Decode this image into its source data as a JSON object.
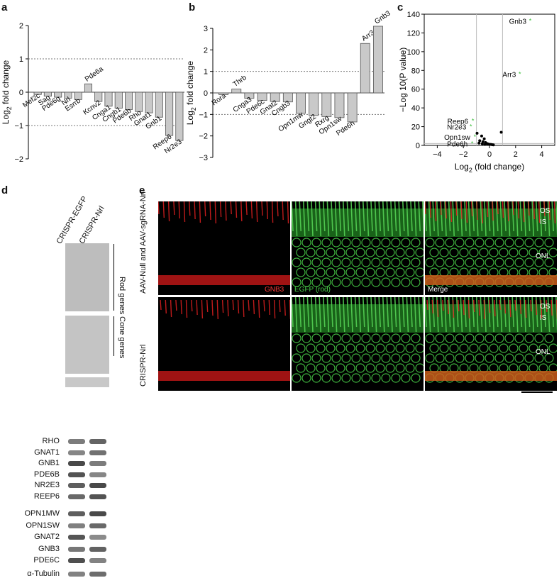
{
  "panels": {
    "a": "a",
    "b": "b",
    "c": "c",
    "d": "d",
    "e": "e"
  },
  "chart_data": [
    {
      "type": "bar",
      "ylabel": "Log2 fold change",
      "ylim": [
        -2,
        2
      ],
      "yticks": [
        "−2",
        "−1",
        "0",
        "1",
        "2"
      ],
      "categories": [
        "Mef2c",
        "Sag",
        "Pde6g",
        "Nrl",
        "Esrrb",
        "Pde6a",
        "Kcnv2",
        "Cnga1",
        "Cngb1",
        "Pde6b",
        "Rho",
        "Gnat1",
        "Gnb1",
        "Reep6",
        "Nr2e3"
      ],
      "values": [
        -0.07,
        -0.12,
        -0.15,
        -0.18,
        -0.22,
        0.25,
        -0.28,
        -0.42,
        -0.48,
        -0.52,
        -0.58,
        -0.62,
        -0.75,
        -1.3,
        -1.45
      ],
      "reference_lines": [
        1,
        -1
      ]
    },
    {
      "type": "bar",
      "ylabel": "Log2 fold change",
      "ylim": [
        -3,
        3
      ],
      "yticks": [
        "−3",
        "−2",
        "−1",
        "0",
        "1",
        "2",
        "3"
      ],
      "categories": [
        "Rora",
        "Thrb",
        "Cnga3",
        "Pde6c",
        "Gnat2",
        "Cngb3",
        "Opn1mw",
        "Gngt2",
        "Rxrg",
        "Opn1sw",
        "Pde6h",
        "Arr3",
        "Gnb3"
      ],
      "values": [
        -0.08,
        0.18,
        -0.25,
        -0.35,
        -0.4,
        -0.42,
        -0.95,
        -1.05,
        -1.1,
        -1.15,
        -1.35,
        2.3,
        3.1
      ],
      "reference_lines": [
        1,
        -1
      ]
    },
    {
      "type": "scatter",
      "ylabel": "−Log 10(P value)",
      "xlabel": "Log2 (fold change)",
      "xlim": [
        -5,
        5
      ],
      "ylim": [
        0,
        140
      ],
      "xticks": [
        "−4",
        "−2",
        "0",
        "2",
        "4"
      ],
      "yticks": [
        "0",
        "20",
        "40",
        "60",
        "80",
        "100",
        "120",
        "140"
      ],
      "highlighted": [
        {
          "label": "Gnb3",
          "x": 3.1,
          "y": 133
        },
        {
          "label": "Arr3",
          "x": 2.3,
          "y": 76
        },
        {
          "label": "Reep6",
          "x": -1.3,
          "y": 26
        },
        {
          "label": "Nr2e3",
          "x": -1.45,
          "y": 20
        },
        {
          "label": "Opn1sw",
          "x": -1.15,
          "y": 9
        },
        {
          "label": "Pde6h",
          "x": -1.35,
          "y": 2
        }
      ],
      "points": [
        {
          "x": -0.95,
          "y": 13
        },
        {
          "x": -0.6,
          "y": 10
        },
        {
          "x": -0.4,
          "y": 7
        },
        {
          "x": -0.75,
          "y": 5
        },
        {
          "x": -0.5,
          "y": 4
        },
        {
          "x": -0.3,
          "y": 3
        },
        {
          "x": -0.2,
          "y": 2
        },
        {
          "x": -0.1,
          "y": 1.5
        },
        {
          "x": 0.0,
          "y": 1
        },
        {
          "x": 0.1,
          "y": 1
        },
        {
          "x": 0.2,
          "y": 0.8
        },
        {
          "x": -0.35,
          "y": 1
        },
        {
          "x": 0.3,
          "y": 0.6
        },
        {
          "x": 0.9,
          "y": 14
        },
        {
          "x": -0.8,
          "y": 2.5
        },
        {
          "x": -0.55,
          "y": 1.8
        }
      ]
    }
  ],
  "blot": {
    "col_headers": [
      "CRISPR-EGFP",
      "CRISPR-Nrl"
    ],
    "rod_genes": [
      "RHO",
      "GNAT1",
      "GNB1",
      "PDE6B",
      "NR2E3",
      "REEP6"
    ],
    "cone_genes": [
      "OPN1MW",
      "OPN1SW",
      "GNAT2",
      "GNB3",
      "PDE6C"
    ],
    "loading": "α-Tubulin",
    "rod_group_label": "Rod genes",
    "cone_group_label": "Cone genes"
  },
  "micrographs": {
    "row_labels": [
      "AAV-Null and AAV-sgRNA-Nrl",
      "CRISPR-Nrl"
    ],
    "channel_labels": {
      "red": "GNB3",
      "green": "EGFP (rod)",
      "merge": "Merge"
    },
    "layers": [
      "OS",
      "IS",
      "ONL"
    ]
  }
}
